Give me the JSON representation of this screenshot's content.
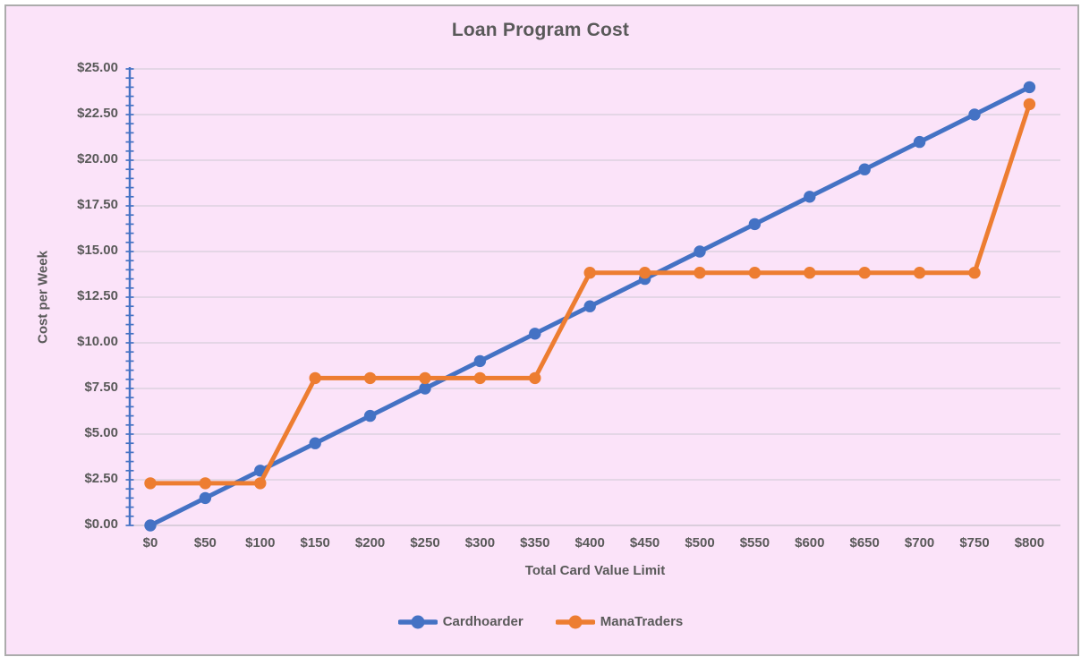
{
  "window": {
    "background": "#FFFFFF",
    "border_color": "#ACACAC"
  },
  "chart": {
    "background": "#FBE3F9",
    "text_color": "#595959",
    "gridline_color": "#DCD2DF",
    "baseline_color": "#CFC6D3",
    "axis_line_color": "#4472C4"
  },
  "chart_data": {
    "type": "line",
    "title": "Loan Program Cost",
    "xlabel": "Total Card Value Limit",
    "ylabel": "Cost per Week",
    "categories": [
      "$0",
      "$50",
      "$100",
      "$150",
      "$200",
      "$250",
      "$300",
      "$350",
      "$400",
      "$450",
      "$500",
      "$550",
      "$600",
      "$650",
      "$700",
      "$750",
      "$800"
    ],
    "x_values": [
      0,
      50,
      100,
      150,
      200,
      250,
      300,
      350,
      400,
      450,
      500,
      550,
      600,
      650,
      700,
      750,
      800
    ],
    "series": [
      {
        "name": "Cardhoarder",
        "color": "#4472C4",
        "marker": "circle",
        "values": [
          0,
          1.5,
          3,
          4.5,
          6,
          7.5,
          9,
          10.5,
          12,
          13.5,
          15,
          16.5,
          18,
          19.5,
          21,
          22.5,
          24
        ]
      },
      {
        "name": "ManaTraders",
        "color": "#ED7D31",
        "marker": "circle",
        "values": [
          2.31,
          2.31,
          2.31,
          8.07,
          8.07,
          8.07,
          8.07,
          8.07,
          13.84,
          13.84,
          13.84,
          13.84,
          13.84,
          13.84,
          13.84,
          13.84,
          23.07
        ]
      }
    ],
    "ylim": [
      0,
      25
    ],
    "y_ticks": [
      "$0.00",
      "$2.50",
      "$5.00",
      "$7.50",
      "$10.00",
      "$12.50",
      "$15.00",
      "$17.50",
      "$20.00",
      "$22.50",
      "$25.00"
    ],
    "y_tick_values": [
      0,
      2.5,
      5,
      7.5,
      10,
      12.5,
      15,
      17.5,
      20,
      22.5,
      25
    ],
    "y_minor_tick_step": 0.5,
    "grid": true,
    "legend_position": "bottom"
  }
}
